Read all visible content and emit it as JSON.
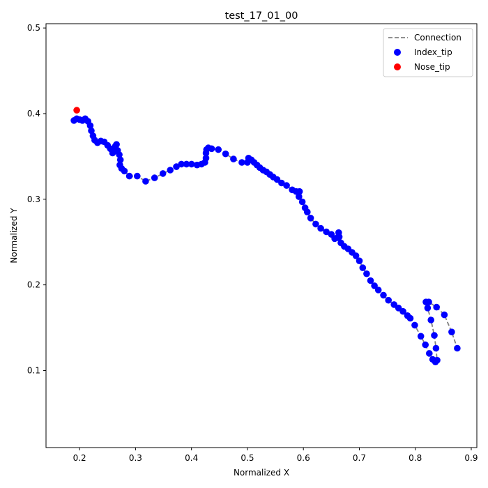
{
  "chart_data": {
    "type": "scatter",
    "title": "test_17_01_00",
    "xlabel": "Normalized X",
    "ylabel": "Normalized Y",
    "xlim": [
      0.14,
      0.91
    ],
    "ylim": [
      0.01,
      0.505
    ],
    "xticks": [
      0.2,
      0.3,
      0.4,
      0.5,
      0.6,
      0.7,
      0.8,
      0.9
    ],
    "xtick_labels": [
      "0.2",
      "0.3",
      "0.4",
      "0.5",
      "0.6",
      "0.7",
      "0.8",
      "0.9"
    ],
    "yticks": [
      0.1,
      0.2,
      0.3,
      0.4,
      0.5
    ],
    "ytick_labels": [
      "0.1",
      "0.2",
      "0.3",
      "0.4",
      "0.5"
    ],
    "grid": false,
    "legend_position": "top-right",
    "legend": [
      {
        "label": "Connection",
        "kind": "dashed-line",
        "color": "#808080"
      },
      {
        "label": "Index_tip",
        "kind": "marker",
        "color": "#0000ff"
      },
      {
        "label": "Nose_tip",
        "kind": "marker",
        "color": "#ff0000"
      }
    ],
    "series": [
      {
        "name": "Index_tip",
        "color": "#0000ff",
        "points": [
          [
            0.19,
            0.392
          ],
          [
            0.195,
            0.394
          ],
          [
            0.2,
            0.393
          ],
          [
            0.205,
            0.392
          ],
          [
            0.21,
            0.394
          ],
          [
            0.215,
            0.391
          ],
          [
            0.219,
            0.386
          ],
          [
            0.221,
            0.38
          ],
          [
            0.224,
            0.374
          ],
          [
            0.227,
            0.369
          ],
          [
            0.232,
            0.366
          ],
          [
            0.238,
            0.368
          ],
          [
            0.244,
            0.367
          ],
          [
            0.25,
            0.363
          ],
          [
            0.255,
            0.359
          ],
          [
            0.259,
            0.354
          ],
          [
            0.262,
            0.356
          ],
          [
            0.264,
            0.362
          ],
          [
            0.266,
            0.364
          ],
          [
            0.268,
            0.357
          ],
          [
            0.271,
            0.352
          ],
          [
            0.273,
            0.346
          ],
          [
            0.272,
            0.34
          ],
          [
            0.275,
            0.336
          ],
          [
            0.28,
            0.333
          ],
          [
            0.289,
            0.327
          ],
          [
            0.303,
            0.327
          ],
          [
            0.318,
            0.321
          ],
          [
            0.334,
            0.325
          ],
          [
            0.349,
            0.33
          ],
          [
            0.362,
            0.334
          ],
          [
            0.373,
            0.338
          ],
          [
            0.382,
            0.341
          ],
          [
            0.391,
            0.341
          ],
          [
            0.4,
            0.341
          ],
          [
            0.41,
            0.34
          ],
          [
            0.418,
            0.341
          ],
          [
            0.424,
            0.343
          ],
          [
            0.426,
            0.348
          ],
          [
            0.426,
            0.354
          ],
          [
            0.427,
            0.358
          ],
          [
            0.43,
            0.36
          ],
          [
            0.436,
            0.359
          ],
          [
            0.448,
            0.358
          ],
          [
            0.461,
            0.353
          ],
          [
            0.475,
            0.347
          ],
          [
            0.49,
            0.343
          ],
          [
            0.5,
            0.343
          ],
          [
            0.502,
            0.348
          ],
          [
            0.507,
            0.346
          ],
          [
            0.512,
            0.343
          ],
          [
            0.517,
            0.34
          ],
          [
            0.522,
            0.337
          ],
          [
            0.528,
            0.334
          ],
          [
            0.534,
            0.332
          ],
          [
            0.54,
            0.329
          ],
          [
            0.546,
            0.326
          ],
          [
            0.553,
            0.323
          ],
          [
            0.561,
            0.319
          ],
          [
            0.57,
            0.316
          ],
          [
            0.58,
            0.311
          ],
          [
            0.587,
            0.309
          ],
          [
            0.593,
            0.309
          ],
          [
            0.592,
            0.303
          ],
          [
            0.598,
            0.297
          ],
          [
            0.603,
            0.29
          ],
          [
            0.607,
            0.285
          ],
          [
            0.613,
            0.278
          ],
          [
            0.622,
            0.271
          ],
          [
            0.631,
            0.266
          ],
          [
            0.641,
            0.262
          ],
          [
            0.65,
            0.259
          ],
          [
            0.656,
            0.254
          ],
          [
            0.66,
            0.255
          ],
          [
            0.663,
            0.261
          ],
          [
            0.664,
            0.256
          ],
          [
            0.667,
            0.249
          ],
          [
            0.673,
            0.245
          ],
          [
            0.68,
            0.242
          ],
          [
            0.687,
            0.238
          ],
          [
            0.694,
            0.234
          ],
          [
            0.7,
            0.228
          ],
          [
            0.706,
            0.22
          ],
          [
            0.713,
            0.213
          ],
          [
            0.72,
            0.205
          ],
          [
            0.727,
            0.199
          ],
          [
            0.734,
            0.194
          ],
          [
            0.743,
            0.188
          ],
          [
            0.752,
            0.182
          ],
          [
            0.762,
            0.177
          ],
          [
            0.77,
            0.173
          ],
          [
            0.778,
            0.169
          ],
          [
            0.786,
            0.164
          ],
          [
            0.791,
            0.161
          ],
          [
            0.799,
            0.153
          ],
          [
            0.81,
            0.14
          ],
          [
            0.818,
            0.13
          ],
          [
            0.825,
            0.12
          ],
          [
            0.831,
            0.113
          ],
          [
            0.836,
            0.11
          ],
          [
            0.839,
            0.112
          ],
          [
            0.837,
            0.126
          ],
          [
            0.834,
            0.141
          ],
          [
            0.828,
            0.159
          ],
          [
            0.822,
            0.173
          ],
          [
            0.819,
            0.18
          ],
          [
            0.824,
            0.18
          ],
          [
            0.838,
            0.174
          ],
          [
            0.852,
            0.165
          ],
          [
            0.865,
            0.145
          ],
          [
            0.875,
            0.126
          ]
        ]
      },
      {
        "name": "Nose_tip",
        "color": "#ff0000",
        "points": [
          [
            0.195,
            0.404
          ]
        ]
      }
    ]
  }
}
